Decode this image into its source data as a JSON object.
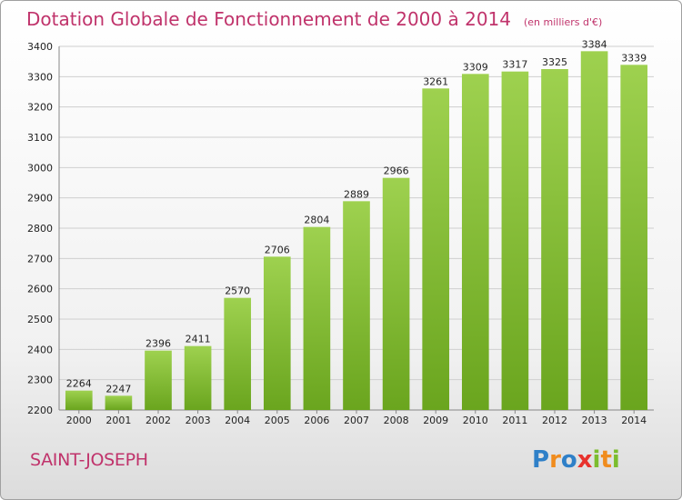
{
  "title": "Dotation Globale de Fonctionnement de 2000 à 2014",
  "unit_note": "(en milliers d'€)",
  "place_name": "SAINT-JOSEPH",
  "logo": {
    "text": "Proxiti",
    "letters": [
      {
        "ch": "P",
        "color": "#2f80c8"
      },
      {
        "ch": "r",
        "color": "#f08c1e"
      },
      {
        "ch": "o",
        "color": "#2f80c8"
      },
      {
        "ch": "x",
        "color": "#e8322d"
      },
      {
        "ch": "i",
        "color": "#7bbd2e"
      },
      {
        "ch": "t",
        "color": "#f08c1e"
      },
      {
        "ch": "i",
        "color": "#7bbd2e"
      }
    ]
  },
  "colors": {
    "title": "#c0336b",
    "bar_top": "#9ed14f",
    "bar_bottom": "#6aa51e",
    "grid": "#cfcfcf",
    "axis_text": "#222222"
  },
  "chart_data": {
    "type": "bar",
    "title": "Dotation Globale de Fonctionnement de 2000 à 2014",
    "subtitle": "(en milliers d'€)",
    "xlabel": "",
    "ylabel": "",
    "categories": [
      "2000",
      "2001",
      "2002",
      "2003",
      "2004",
      "2005",
      "2006",
      "2007",
      "2008",
      "2009",
      "2010",
      "2011",
      "2012",
      "2013",
      "2014"
    ],
    "values": [
      2264,
      2247,
      2396,
      2411,
      2570,
      2706,
      2804,
      2889,
      2966,
      3261,
      3309,
      3317,
      3325,
      3384,
      3339
    ],
    "ylim": [
      2200,
      3400
    ],
    "yticks": [
      2200,
      2300,
      2400,
      2500,
      2600,
      2700,
      2800,
      2900,
      3000,
      3100,
      3200,
      3300,
      3400
    ],
    "grid": true,
    "legend": "none"
  }
}
